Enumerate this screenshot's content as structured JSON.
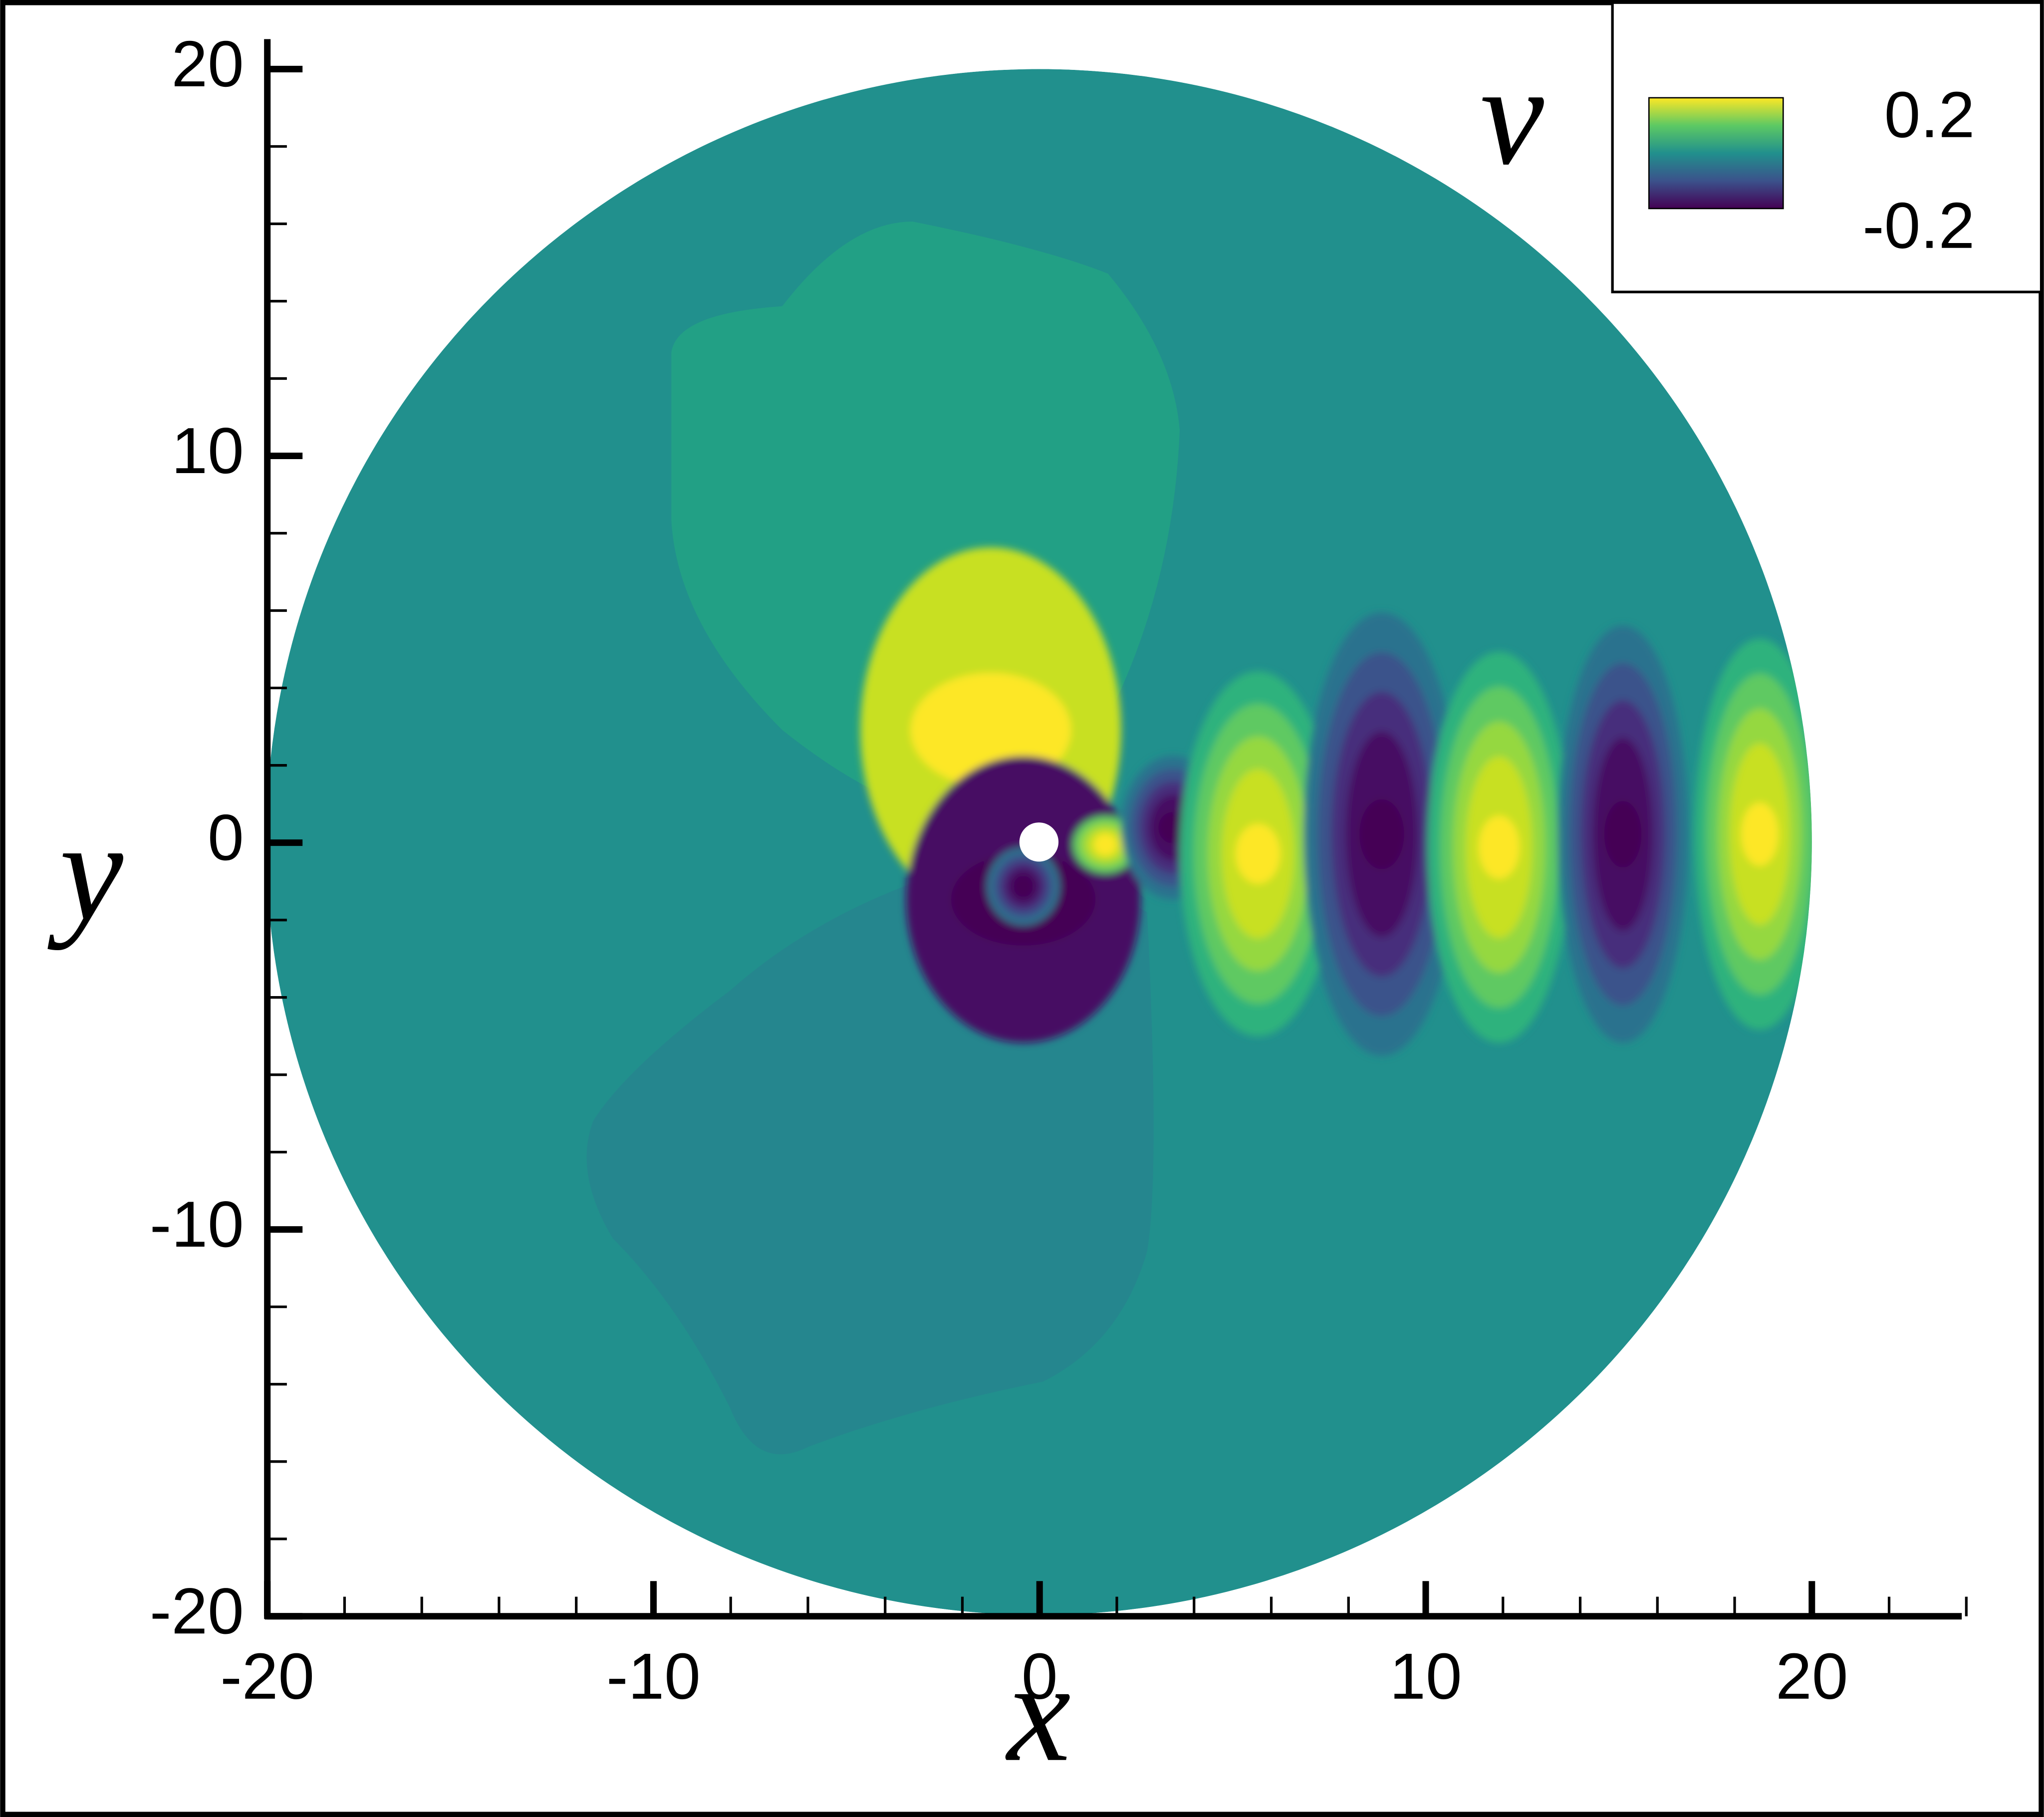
{
  "chart_data": {
    "type": "contour",
    "x_label": "x",
    "y_label": "y",
    "xlim": [
      -20,
      24
    ],
    "ylim": [
      -20,
      20
    ],
    "xticks": [
      -20,
      -10,
      0,
      10,
      20
    ],
    "yticks": [
      -20,
      -10,
      0,
      10,
      20
    ],
    "colorbar": {
      "title": "v",
      "range": [
        -0.2,
        0.2
      ],
      "ticks": [
        0.2,
        -0.2
      ],
      "colormap": "viridis"
    }
  }
}
